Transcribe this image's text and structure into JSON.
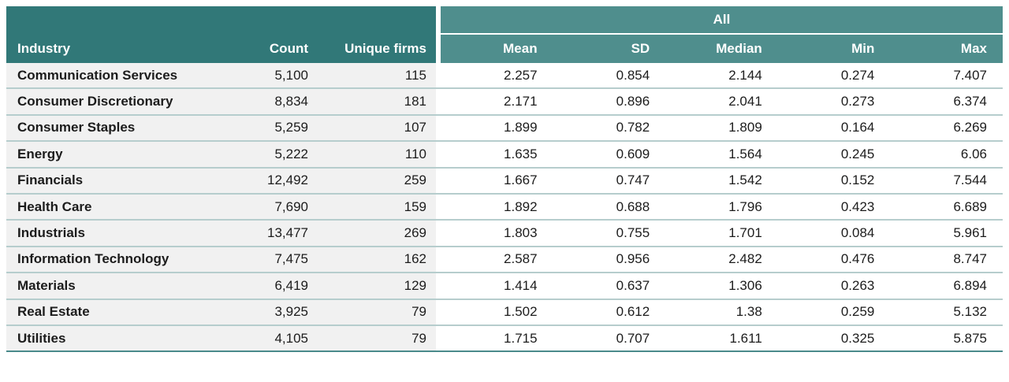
{
  "colors": {
    "header_dark_teal": "#317878",
    "header_light_teal": "#4f8e8d",
    "row_left_background": "#f1f1f1",
    "row_divider": "#b6cdcd",
    "table_bottom_border": "#4a8a8b",
    "text": "#1c1c1c",
    "header_text": "#ffffff"
  },
  "chart_data": {
    "type": "table",
    "group_header": "All",
    "columns": {
      "industry": "Industry",
      "count": "Count",
      "unique_firms": "Unique firms",
      "stats": [
        "Mean",
        "SD",
        "Median",
        "Min",
        "Max"
      ]
    },
    "rows": [
      {
        "industry": "Communication Services",
        "count": "5,100",
        "unique_firms": "115",
        "mean": "2.257",
        "sd": "0.854",
        "median": "2.144",
        "min": "0.274",
        "max": "7.407"
      },
      {
        "industry": "Consumer Discretionary",
        "count": "8,834",
        "unique_firms": "181",
        "mean": "2.171",
        "sd": "0.896",
        "median": "2.041",
        "min": "0.273",
        "max": "6.374"
      },
      {
        "industry": "Consumer Staples",
        "count": "5,259",
        "unique_firms": "107",
        "mean": "1.899",
        "sd": "0.782",
        "median": "1.809",
        "min": "0.164",
        "max": "6.269"
      },
      {
        "industry": "Energy",
        "count": "5,222",
        "unique_firms": "110",
        "mean": "1.635",
        "sd": "0.609",
        "median": "1.564",
        "min": "0.245",
        "max": "6.06"
      },
      {
        "industry": "Financials",
        "count": "12,492",
        "unique_firms": "259",
        "mean": "1.667",
        "sd": "0.747",
        "median": "1.542",
        "min": "0.152",
        "max": "7.544"
      },
      {
        "industry": "Health Care",
        "count": "7,690",
        "unique_firms": "159",
        "mean": "1.892",
        "sd": "0.688",
        "median": "1.796",
        "min": "0.423",
        "max": "6.689"
      },
      {
        "industry": "Industrials",
        "count": "13,477",
        "unique_firms": "269",
        "mean": "1.803",
        "sd": "0.755",
        "median": "1.701",
        "min": "0.084",
        "max": "5.961"
      },
      {
        "industry": "Information Technology",
        "count": "7,475",
        "unique_firms": "162",
        "mean": "2.587",
        "sd": "0.956",
        "median": "2.482",
        "min": "0.476",
        "max": "8.747"
      },
      {
        "industry": "Materials",
        "count": "6,419",
        "unique_firms": "129",
        "mean": "1.414",
        "sd": "0.637",
        "median": "1.306",
        "min": "0.263",
        "max": "6.894"
      },
      {
        "industry": "Real Estate",
        "count": "3,925",
        "unique_firms": "79",
        "mean": "1.502",
        "sd": "0.612",
        "median": "1.38",
        "min": "0.259",
        "max": "5.132"
      },
      {
        "industry": "Utilities",
        "count": "4,105",
        "unique_firms": "79",
        "mean": "1.715",
        "sd": "0.707",
        "median": "1.611",
        "min": "0.325",
        "max": "5.875"
      }
    ]
  }
}
